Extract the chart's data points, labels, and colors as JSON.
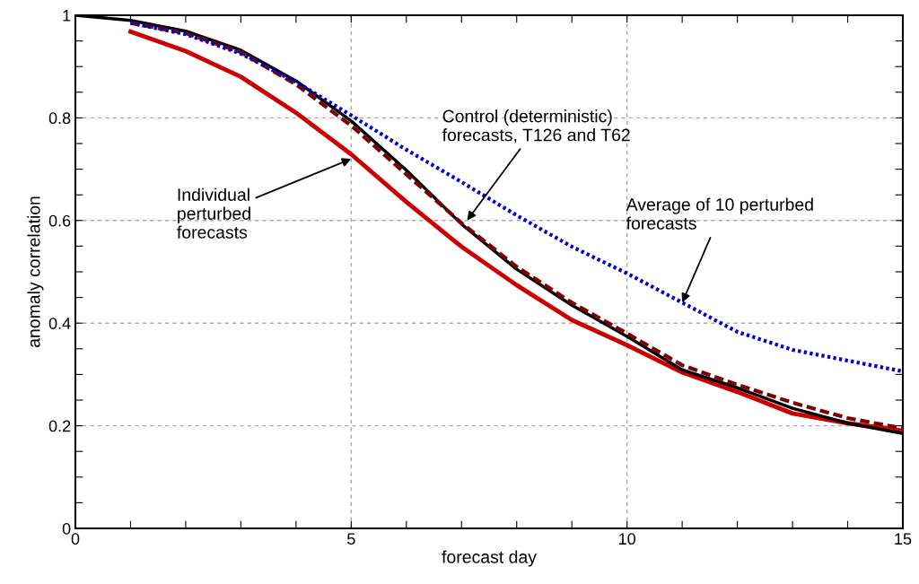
{
  "chart_data": {
    "type": "line",
    "xlabel": "forecast day",
    "ylabel": "anomaly correlation",
    "xlim": [
      0,
      15
    ],
    "ylim": [
      0,
      1
    ],
    "xticks": [
      0,
      {
        "value": 1,
        "label": null
      },
      {
        "value": 2,
        "label": null
      },
      {
        "value": 3,
        "label": null
      },
      {
        "value": 4,
        "label": null
      },
      5,
      {
        "value": 6,
        "label": null
      },
      {
        "value": 7,
        "label": null
      },
      {
        "value": 8,
        "label": null
      },
      {
        "value": 9,
        "label": null
      },
      10,
      {
        "value": 11,
        "label": null
      },
      {
        "value": 12,
        "label": null
      },
      {
        "value": 13,
        "label": null
      },
      {
        "value": 14,
        "label": null
      },
      15
    ],
    "yticks": [
      0,
      {
        "value": 0.05,
        "label": null
      },
      {
        "value": 0.1,
        "label": null
      },
      {
        "value": 0.15,
        "label": null
      },
      0.2,
      {
        "value": 0.25,
        "label": null
      },
      {
        "value": 0.3,
        "label": null
      },
      {
        "value": 0.35,
        "label": null
      },
      0.4,
      {
        "value": 0.45,
        "label": null
      },
      {
        "value": 0.5,
        "label": null
      },
      {
        "value": 0.55,
        "label": null
      },
      0.6,
      {
        "value": 0.65,
        "label": null
      },
      {
        "value": 0.7,
        "label": null
      },
      {
        "value": 0.75,
        "label": null
      },
      0.8,
      {
        "value": 0.85,
        "label": null
      },
      {
        "value": 0.9,
        "label": null
      },
      {
        "value": 0.95,
        "label": null
      },
      1
    ],
    "grid": true,
    "marker": "none",
    "series": [
      {
        "color": "#0000cc",
        "line_style": "dotted",
        "x": [
          1,
          2,
          3,
          4,
          5,
          6,
          7,
          8,
          9,
          10,
          11,
          12,
          13,
          14,
          15
        ],
        "values": [
          0.985,
          0.963,
          0.925,
          0.87,
          0.805,
          0.738,
          0.675,
          0.61,
          0.549,
          0.497,
          0.44,
          0.383,
          0.348,
          0.327,
          0.306
        ]
      },
      {
        "color": "#cc0000",
        "line_style": "solid",
        "x": [
          1,
          2,
          3,
          4,
          5,
          6,
          7,
          8,
          9,
          10,
          11,
          12,
          13,
          14,
          15
        ],
        "values": [
          0.968,
          0.93,
          0.88,
          0.81,
          0.729,
          0.636,
          0.549,
          0.474,
          0.406,
          0.357,
          0.304,
          0.266,
          0.224,
          0.205,
          0.19
        ]
      },
      {
        "color": "#800000",
        "line_style": "dashed",
        "x": [
          1,
          2,
          3,
          4,
          5,
          6,
          7,
          8,
          9,
          10,
          11,
          12,
          13,
          14,
          15
        ],
        "values": [
          0.985,
          0.965,
          0.928,
          0.865,
          0.785,
          0.69,
          0.595,
          0.51,
          0.44,
          0.38,
          0.318,
          0.28,
          0.245,
          0.215,
          0.195
        ]
      },
      {
        "color": "#000000",
        "line_style": "solid",
        "x": [
          0,
          1,
          2,
          3,
          4,
          5,
          6,
          7,
          8,
          9,
          10,
          11,
          12,
          13,
          14,
          15
        ],
        "values": [
          1,
          0.99,
          0.969,
          0.932,
          0.872,
          0.794,
          0.698,
          0.593,
          0.505,
          0.435,
          0.374,
          0.309,
          0.274,
          0.234,
          0.205,
          0.185
        ]
      }
    ],
    "annotations": [
      {
        "text": "Individual\nperturbed\nforecasts",
        "x": 5,
        "y": 0.72
      },
      {
        "text": "Control (deterministic)\nforecasts, T126 and T62",
        "x": 7.1,
        "y": 0.6
      },
      {
        "text": "Average of 10 perturbed\nforecasts",
        "x": 11,
        "y": 0.44
      }
    ]
  }
}
